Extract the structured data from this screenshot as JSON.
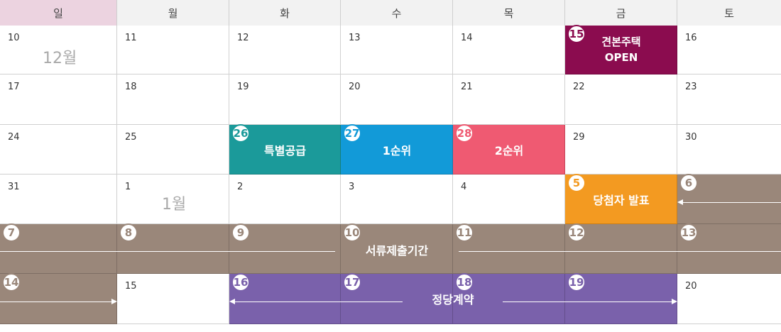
{
  "weekdays": [
    "일",
    "월",
    "화",
    "수",
    "목",
    "금",
    "토"
  ],
  "months": {
    "dec": "12월",
    "jan": "1월"
  },
  "dates": {
    "r0": [
      "10",
      "11",
      "12",
      "13",
      "14",
      "15",
      "16"
    ],
    "r1": [
      "17",
      "18",
      "19",
      "20",
      "21",
      "22",
      "23"
    ],
    "r2": [
      "24",
      "25",
      "26",
      "27",
      "28",
      "29",
      "30"
    ],
    "r3": [
      "31",
      "1",
      "2",
      "3",
      "4",
      "5",
      "6"
    ],
    "r4": [
      "7",
      "8",
      "9",
      "10",
      "11",
      "12",
      "13"
    ],
    "r5": [
      "14",
      "15",
      "16",
      "17",
      "18",
      "19",
      "20"
    ]
  },
  "events": {
    "model_house": {
      "line1": "견본주택",
      "line2": "OPEN",
      "color": "#8b0c4f"
    },
    "special_supply": {
      "label": "특별공급",
      "color": "#1b9a9a"
    },
    "first_priority": {
      "label": "1순위",
      "color": "#129ad8"
    },
    "second_priority": {
      "label": "2순위",
      "color": "#ef5a72"
    },
    "winner_announce": {
      "label": "당첨자 발표",
      "color": "#f39a21"
    },
    "document_submission": {
      "label": "서류제출기간",
      "color": "#9a877a"
    },
    "contract": {
      "label": "정당계약",
      "color": "#7a61ab"
    }
  }
}
